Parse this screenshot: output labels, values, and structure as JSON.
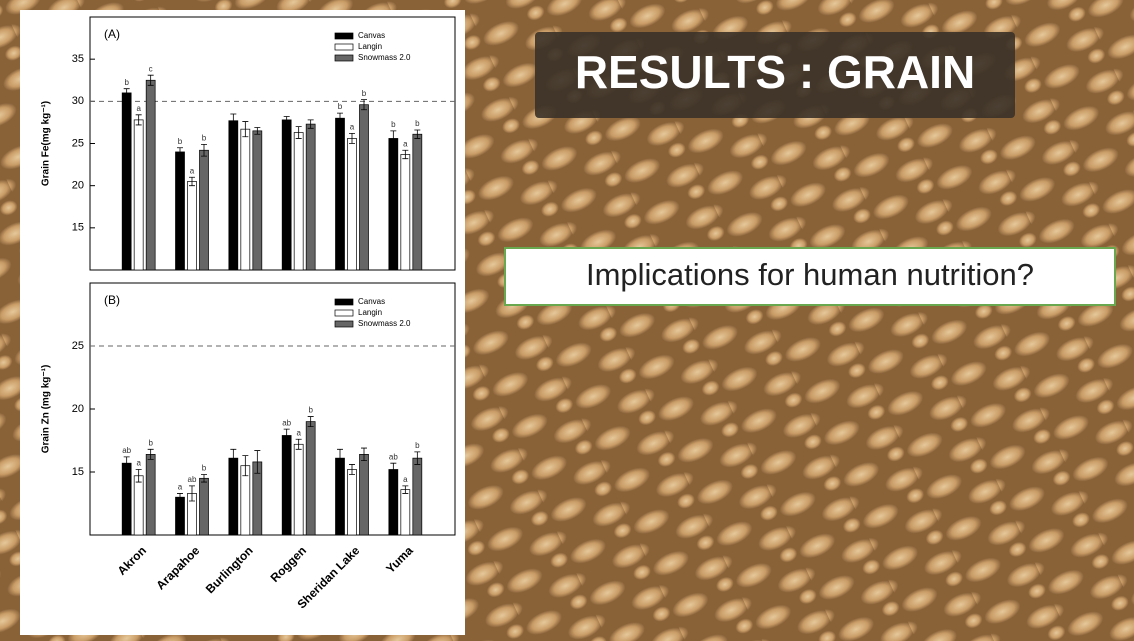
{
  "slide": {
    "title": "RESULTS : GRAIN",
    "callout": "Implications for human nutrition?"
  },
  "chart_data": [
    {
      "type": "bar",
      "panel_label": "(A)",
      "y_label": "Grain Fe(mg kg⁻¹)",
      "categories": [
        null,
        null,
        null,
        null,
        null,
        null
      ],
      "ylim": [
        10,
        40
      ],
      "yticks": [
        15,
        20,
        25,
        30,
        35
      ],
      "reference_line": 30,
      "series": [
        {
          "name": "Canvas",
          "color": "#000000",
          "values": [
            31.0,
            24.0,
            27.7,
            27.8,
            28.0,
            25.6
          ],
          "errors": [
            0.5,
            0.5,
            0.8,
            0.4,
            0.6,
            0.9
          ],
          "letters": [
            "b",
            "b",
            null,
            null,
            "b",
            "b"
          ]
        },
        {
          "name": "Langin",
          "color": "#ffffff",
          "values": [
            27.8,
            20.5,
            26.7,
            26.3,
            25.6,
            23.7
          ],
          "errors": [
            0.6,
            0.5,
            0.9,
            0.7,
            0.6,
            0.5
          ],
          "letters": [
            "a",
            "a",
            null,
            null,
            "a",
            "a"
          ]
        },
        {
          "name": "Snowmass 2.0",
          "color": "#666666",
          "values": [
            32.5,
            24.2,
            26.5,
            27.3,
            29.6,
            26.1
          ],
          "errors": [
            0.6,
            0.7,
            0.4,
            0.5,
            0.6,
            0.5
          ],
          "letters": [
            "c",
            "b",
            null,
            null,
            "b",
            "b"
          ]
        }
      ]
    },
    {
      "type": "bar",
      "panel_label": "(B)",
      "y_label": "Grain Zn (mg kg⁻¹)",
      "categories": [
        "Akron",
        "Arapahoe",
        "Burlington",
        "Roggen",
        "Sheridan Lake",
        "Yuma"
      ],
      "ylim": [
        10,
        30
      ],
      "yticks": [
        15,
        20,
        25
      ],
      "reference_line": 25,
      "series": [
        {
          "name": "Canvas",
          "color": "#000000",
          "values": [
            15.7,
            13.0,
            16.1,
            17.9,
            16.1,
            15.2
          ],
          "errors": [
            0.5,
            0.3,
            0.7,
            0.5,
            0.7,
            0.5
          ],
          "letters": [
            "ab",
            "a",
            null,
            "ab",
            null,
            "ab"
          ]
        },
        {
          "name": "Langin",
          "color": "#ffffff",
          "values": [
            14.7,
            13.3,
            15.5,
            17.2,
            15.2,
            13.6
          ],
          "errors": [
            0.5,
            0.6,
            0.8,
            0.4,
            0.4,
            0.3
          ],
          "letters": [
            "a",
            "ab",
            null,
            "a",
            null,
            "a"
          ]
        },
        {
          "name": "Snowmass 2.0",
          "color": "#666666",
          "values": [
            16.4,
            14.5,
            15.8,
            19.0,
            16.4,
            16.1
          ],
          "errors": [
            0.4,
            0.3,
            0.9,
            0.4,
            0.5,
            0.5
          ],
          "letters": [
            "b",
            "b",
            null,
            "b",
            null,
            "b"
          ]
        }
      ]
    }
  ]
}
